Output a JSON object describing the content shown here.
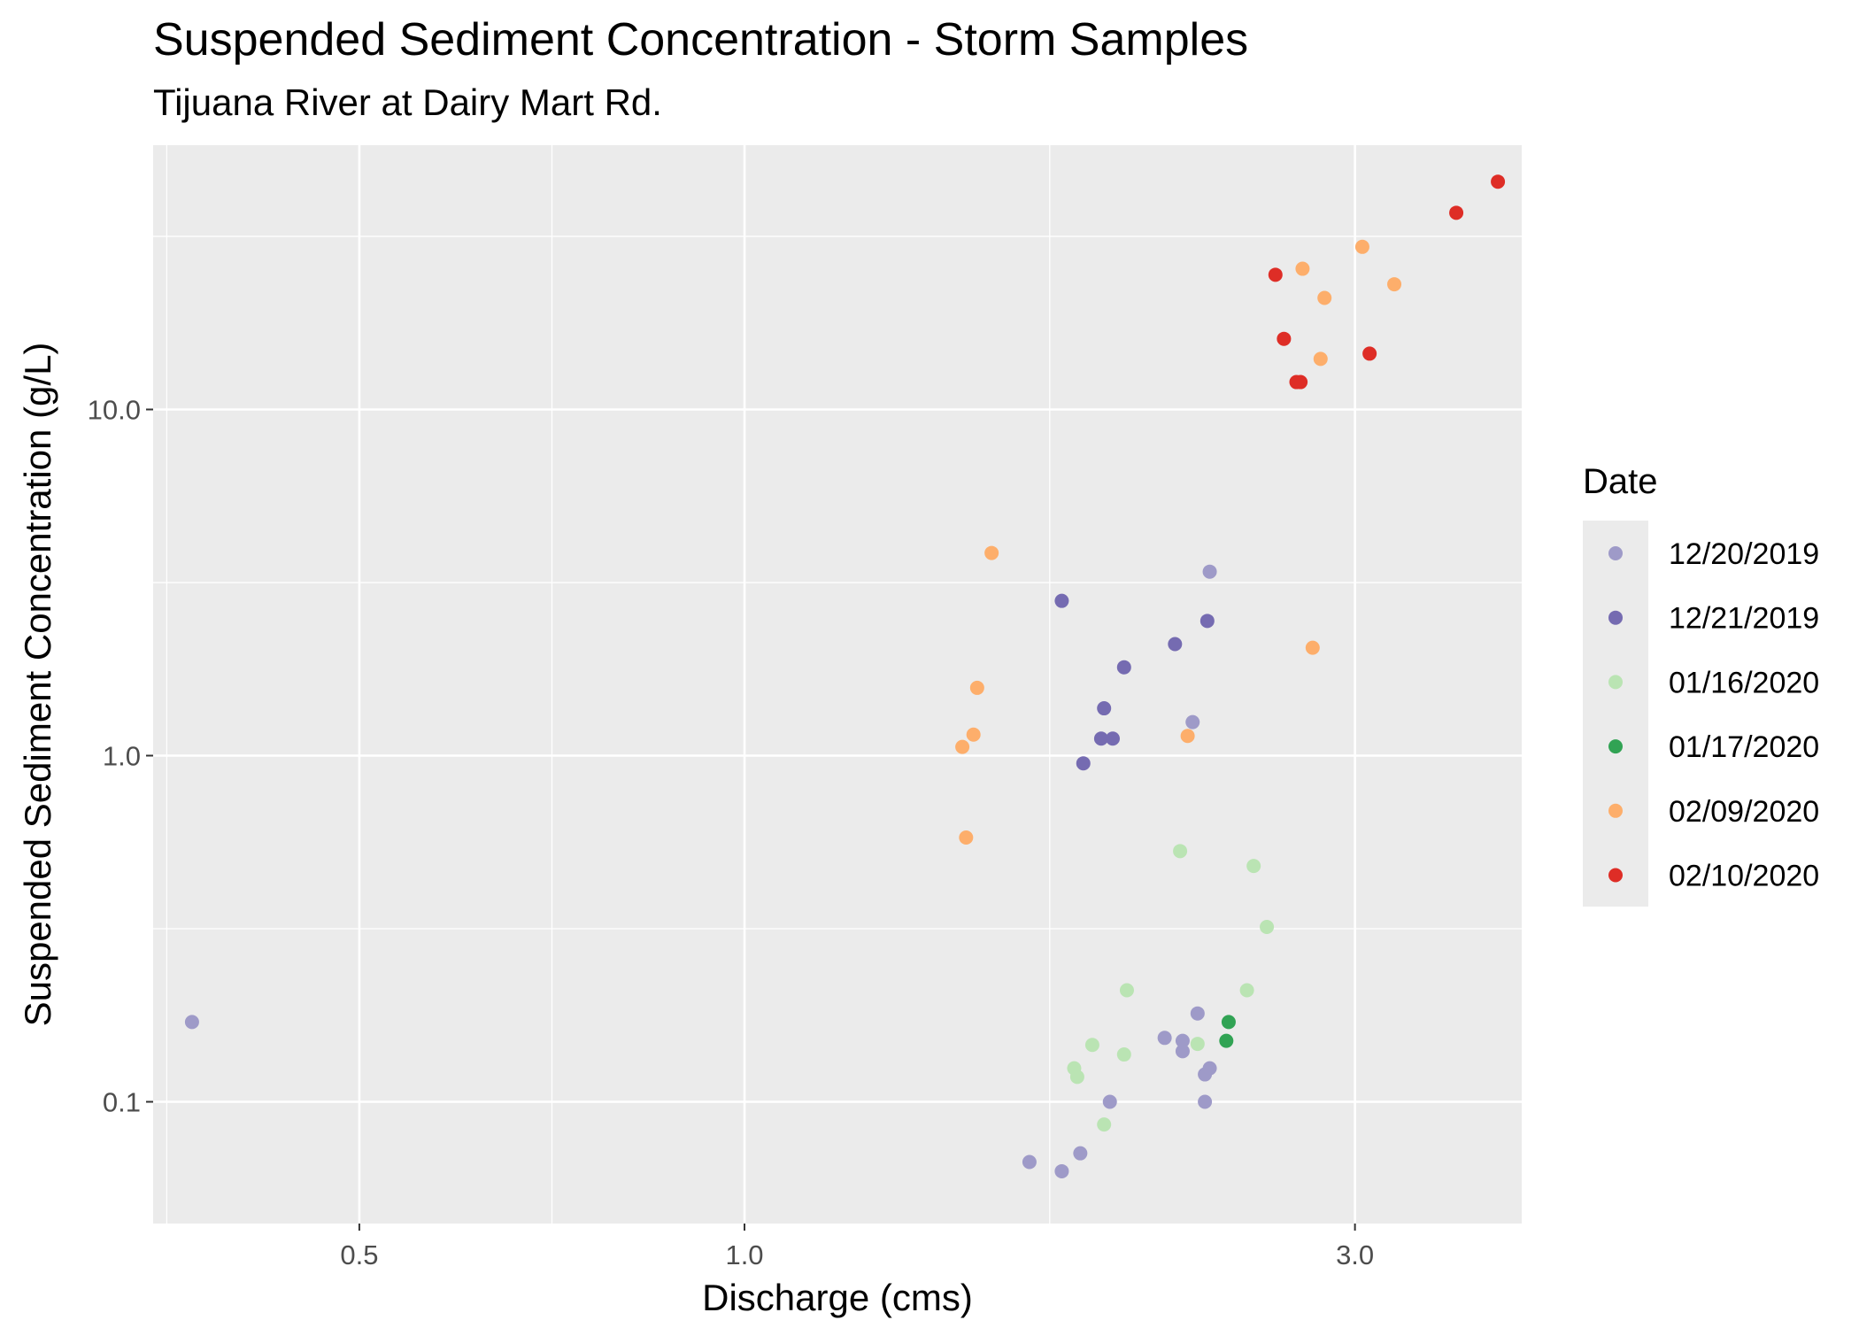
{
  "chart_data": {
    "type": "scatter",
    "title": "Suspended Sediment Concentration - Storm Samples",
    "subtitle": "Tijuana River at Dairy Mart Rd.",
    "xlabel": "Discharge (cms)",
    "ylabel": "Suspended Sediment Concentration (g/L)",
    "x_scale": "log10",
    "y_scale": "log10",
    "xlim": [
      0.345,
      4.05
    ],
    "ylim": [
      0.0445,
      58
    ],
    "x_ticks": [
      0.5,
      1.0,
      3.0
    ],
    "x_tick_labels": [
      "0.5",
      "1.0",
      "3.0"
    ],
    "y_ticks": [
      0.1,
      1.0,
      10.0
    ],
    "y_tick_labels": [
      "0.1",
      "1.0",
      "10.0"
    ],
    "grid": true,
    "background": "#ebebeb",
    "legend": {
      "title": "Date",
      "position": "right"
    },
    "series": [
      {
        "name": "12/20/2019",
        "color": "#9e9ac8",
        "points": [
          [
            0.37,
            0.17
          ],
          [
            1.67,
            0.067
          ],
          [
            1.77,
            0.063
          ],
          [
            1.83,
            0.071
          ],
          [
            1.93,
            0.1
          ],
          [
            2.13,
            0.153
          ],
          [
            2.2,
            0.14
          ],
          [
            2.2,
            0.15
          ],
          [
            2.26,
            0.18
          ],
          [
            2.29,
            0.1
          ],
          [
            2.29,
            0.12
          ],
          [
            2.31,
            0.125
          ],
          [
            2.31,
            3.4
          ],
          [
            2.24,
            1.25
          ]
        ]
      },
      {
        "name": "12/21/2019",
        "color": "#756bb1",
        "points": [
          [
            1.77,
            2.8
          ],
          [
            1.84,
            0.95
          ],
          [
            1.9,
            1.12
          ],
          [
            1.91,
            1.37
          ],
          [
            1.94,
            1.12
          ],
          [
            1.98,
            1.8
          ],
          [
            2.17,
            2.1
          ],
          [
            2.3,
            2.45
          ]
        ]
      },
      {
        "name": "01/16/2020",
        "color": "#bae4b3",
        "points": [
          [
            1.81,
            0.125
          ],
          [
            1.82,
            0.118
          ],
          [
            1.87,
            0.146
          ],
          [
            1.91,
            0.086
          ],
          [
            1.98,
            0.137
          ],
          [
            1.99,
            0.21
          ],
          [
            2.19,
            0.53
          ],
          [
            2.26,
            0.147
          ],
          [
            2.47,
            0.21
          ],
          [
            2.5,
            0.48
          ],
          [
            2.56,
            0.32
          ]
        ]
      },
      {
        "name": "01/17/2020",
        "color": "#31a354",
        "points": [
          [
            2.38,
            0.15
          ],
          [
            2.39,
            0.17
          ]
        ]
      },
      {
        "name": "02/09/2020",
        "color": "#fdae6b",
        "points": [
          [
            1.48,
            1.06
          ],
          [
            1.49,
            0.58
          ],
          [
            1.51,
            1.15
          ],
          [
            1.52,
            1.57
          ],
          [
            1.56,
            3.85
          ],
          [
            2.22,
            1.14
          ],
          [
            2.73,
            25.5
          ],
          [
            2.78,
            2.05
          ],
          [
            2.82,
            14.0
          ],
          [
            2.84,
            21.0
          ],
          [
            3.04,
            29.5
          ],
          [
            3.22,
            23.0
          ]
        ]
      },
      {
        "name": "02/10/2020",
        "color": "#de2d26",
        "points": [
          [
            2.6,
            24.5
          ],
          [
            2.64,
            16.0
          ],
          [
            2.72,
            12.0
          ],
          [
            2.7,
            12.0
          ],
          [
            3.08,
            14.5
          ],
          [
            3.6,
            37.0
          ],
          [
            3.88,
            45.5
          ]
        ]
      }
    ]
  }
}
